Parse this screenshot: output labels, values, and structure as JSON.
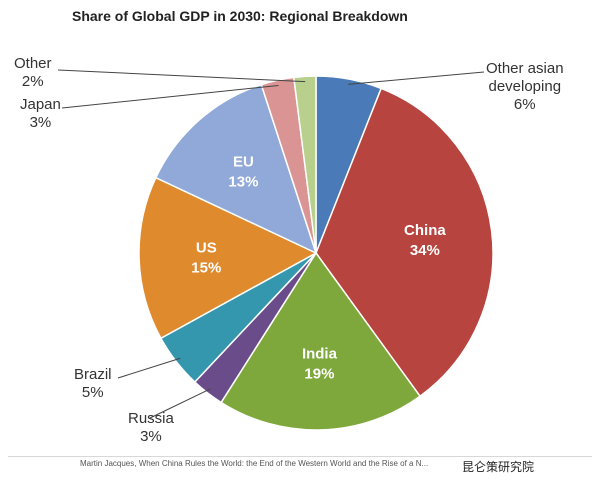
{
  "chart_data": {
    "type": "pie",
    "title": "Share of Global GDP in 2030: Regional Breakdown",
    "source": "Martin Jacques, When China Rules the World: the End of the Western World and the Rise of a N...",
    "slices": [
      {
        "name": "Other asian developing",
        "label_lines": [
          "Other asian",
          "developing"
        ],
        "value_label": "6%",
        "value": 6,
        "color": "#4a7ab8",
        "inside": false
      },
      {
        "name": "China",
        "value_label": "34%",
        "value": 34,
        "color": "#b8443f",
        "inside": true
      },
      {
        "name": "India",
        "value_label": "19%",
        "value": 19,
        "color": "#7fa83c",
        "inside": true
      },
      {
        "name": "Russia",
        "value_label": "3%",
        "value": 3,
        "color": "#6b4c8a",
        "inside": false
      },
      {
        "name": "Brazil",
        "value_label": "5%",
        "value": 5,
        "color": "#3497ad",
        "inside": false
      },
      {
        "name": "US",
        "value_label": "15%",
        "value": 15,
        "color": "#e08a2e",
        "inside": true
      },
      {
        "name": "EU",
        "value_label": "13%",
        "value": 13,
        "color": "#90a9d8",
        "inside": true
      },
      {
        "name": "Japan",
        "value_label": "3%",
        "value": 3,
        "color": "#db9494",
        "inside": false
      },
      {
        "name": "Other",
        "value_label": "2%",
        "value": 2,
        "color": "#b8d08c",
        "inside": false
      }
    ]
  },
  "watermark": "昆仑策研究院"
}
